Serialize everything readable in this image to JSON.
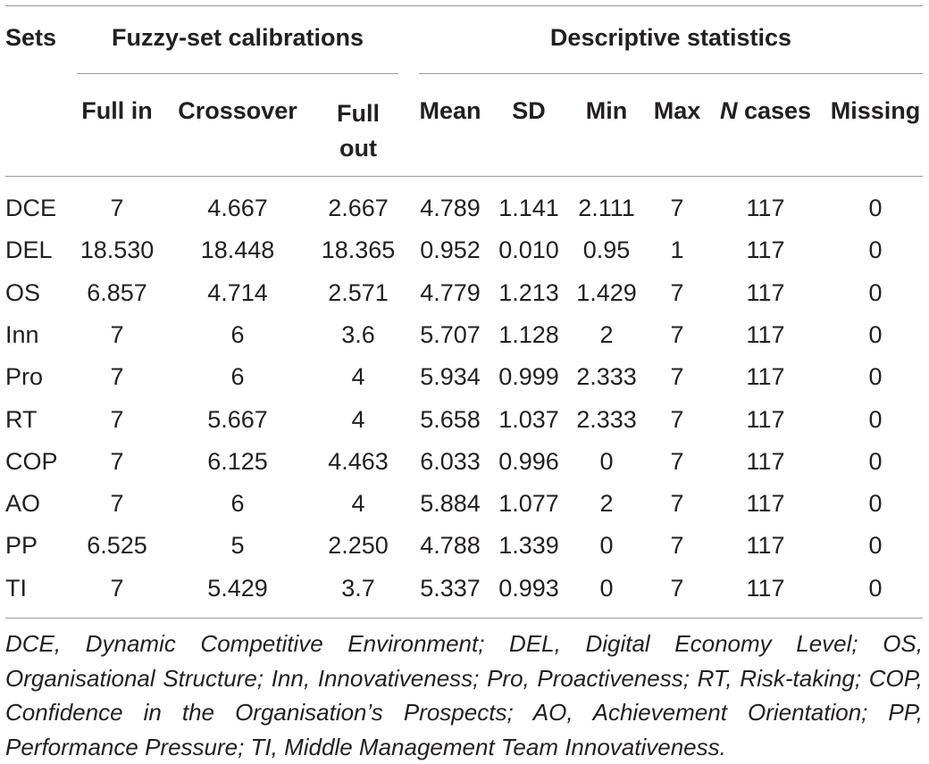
{
  "table": {
    "headers": {
      "sets": "Sets",
      "group_calibrations": "Fuzzy-set calibrations",
      "group_descriptive": "Descriptive statistics",
      "full_in": "Full in",
      "crossover": "Crossover",
      "full_out_line1": "Full",
      "full_out_line2": "out",
      "mean": "Mean",
      "sd": "SD",
      "min": "Min",
      "max": "Max",
      "n_cases_n": "N",
      "n_cases_rest": " cases",
      "missing": "Missing"
    },
    "rows": [
      [
        "DCE",
        "7",
        "4.667",
        "2.667",
        "4.789",
        "1.141",
        "2.111",
        "7",
        "117",
        "0"
      ],
      [
        "DEL",
        "18.530",
        "18.448",
        "18.365",
        "0.952",
        "0.010",
        "0.95",
        "1",
        "117",
        "0"
      ],
      [
        "OS",
        "6.857",
        "4.714",
        "2.571",
        "4.779",
        "1.213",
        "1.429",
        "7",
        "117",
        "0"
      ],
      [
        "Inn",
        "7",
        "6",
        "3.6",
        "5.707",
        "1.128",
        "2",
        "7",
        "117",
        "0"
      ],
      [
        "Pro",
        "7",
        "6",
        "4",
        "5.934",
        "0.999",
        "2.333",
        "7",
        "117",
        "0"
      ],
      [
        "RT",
        "7",
        "5.667",
        "4",
        "5.658",
        "1.037",
        "2.333",
        "7",
        "117",
        "0"
      ],
      [
        "COP",
        "7",
        "6.125",
        "4.463",
        "6.033",
        "0.996",
        "0",
        "7",
        "117",
        "0"
      ],
      [
        "AO",
        "7",
        "6",
        "4",
        "5.884",
        "1.077",
        "2",
        "7",
        "117",
        "0"
      ],
      [
        "PP",
        "6.525",
        "5",
        "2.250",
        "4.788",
        "1.339",
        "0",
        "7",
        "117",
        "0"
      ],
      [
        "TI",
        "7",
        "5.429",
        "3.7",
        "5.337",
        "0.993",
        "0",
        "7",
        "117",
        "0"
      ]
    ],
    "footnote": "DCE, Dynamic Competitive Environment; DEL, Digital Economy Level; OS, Organisational Structure; Inn, Innovativeness; Pro, Proactiveness; RT, Risk-taking; COP, Confidence in the Organisation’s Prospects; AO, Achievement Orientation; PP, Performance Pressure; TI, Middle Management Team Innovativeness."
  }
}
